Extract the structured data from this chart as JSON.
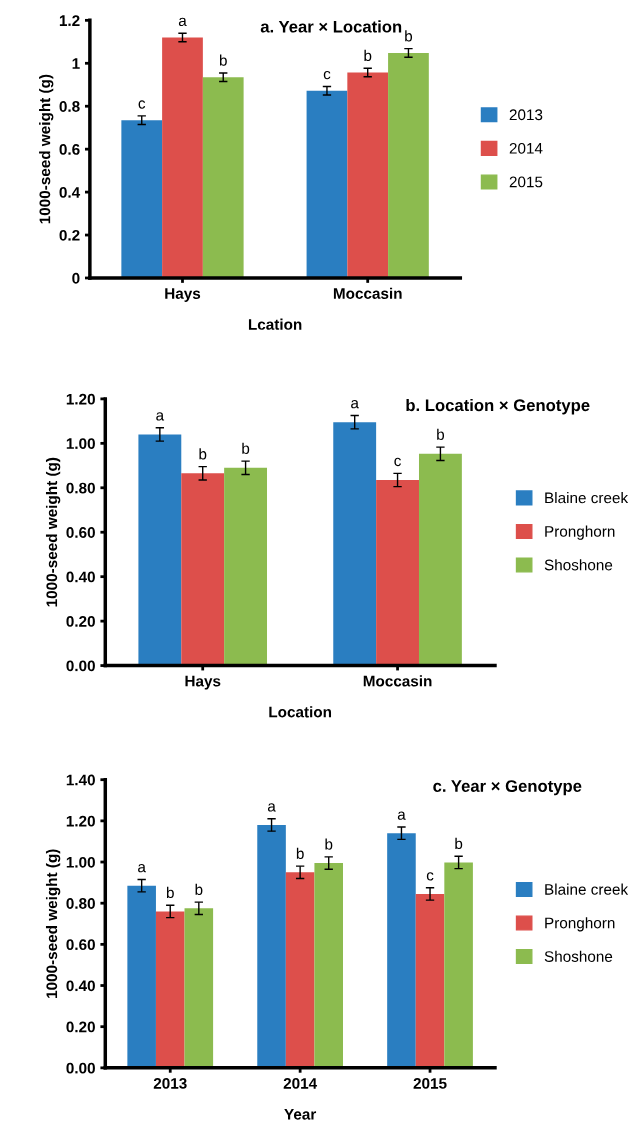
{
  "chart_data": [
    {
      "type": "bar",
      "title": "a. Year × Location",
      "xlabel": "Lcation",
      "ylabel": "1000-seed weight (g)",
      "categories": [
        "Hays",
        "Moccasin"
      ],
      "series": [
        {
          "name": "2013",
          "color": "#2a7ec1",
          "values": [
            0.735,
            0.872
          ],
          "errors": [
            0.02,
            0.02
          ],
          "value_labels": [
            "c",
            "c"
          ]
        },
        {
          "name": "2014",
          "color": "#dd4f4b",
          "values": [
            1.12,
            0.957
          ],
          "errors": [
            0.02,
            0.02
          ],
          "value_labels": [
            "a",
            "b"
          ]
        },
        {
          "name": "2015",
          "color": "#8cbb4f",
          "values": [
            0.935,
            1.048
          ],
          "errors": [
            0.02,
            0.02
          ],
          "value_labels": [
            "b",
            "b"
          ]
        }
      ],
      "ylim": [
        0,
        1.2
      ],
      "yticks": [
        0,
        0.2,
        0.4,
        0.6,
        0.8,
        1,
        1.2
      ],
      "legend": "right",
      "grid": false
    },
    {
      "type": "bar",
      "title": "b. Location × Genotype",
      "xlabel": "Location",
      "ylabel": "1000-seed weight (g)",
      "categories": [
        "Hays",
        "Moccasin"
      ],
      "series": [
        {
          "name": "Blaine creek",
          "color": "#2a7ec1",
          "values": [
            1.04,
            1.095
          ],
          "errors": [
            0.03,
            0.03
          ],
          "value_labels": [
            "a",
            "a"
          ]
        },
        {
          "name": "Pronghorn",
          "color": "#dd4f4b",
          "values": [
            0.865,
            0.835
          ],
          "errors": [
            0.03,
            0.03
          ],
          "value_labels": [
            "b",
            "c"
          ]
        },
        {
          "name": "Shoshone",
          "color": "#8cbb4f",
          "values": [
            0.89,
            0.953
          ],
          "errors": [
            0.03,
            0.03
          ],
          "value_labels": [
            "b",
            "b"
          ]
        }
      ],
      "ylim": [
        0,
        1.2
      ],
      "yticks": [
        {
          "value": 0,
          "label": "0.00"
        },
        {
          "value": 0.2,
          "label": "0.20"
        },
        {
          "value": 0.4,
          "label": "0.40"
        },
        {
          "value": 0.6,
          "label": "0.60"
        },
        {
          "value": 0.8,
          "label": "0.80"
        },
        {
          "value": 1.0,
          "label": "1.00"
        },
        {
          "value": 1.2,
          "label": "1.20"
        }
      ],
      "legend": "right",
      "grid": false
    },
    {
      "type": "bar",
      "title": "c. Year × Genotype",
      "xlabel": "Year",
      "ylabel": "1000-seed weight (g)",
      "categories": [
        "2013",
        "2014",
        "2015"
      ],
      "series": [
        {
          "name": "Blaine creek",
          "color": "#2a7ec1",
          "values": [
            0.885,
            1.18,
            1.14
          ],
          "errors": [
            0.03,
            0.03,
            0.03
          ],
          "value_labels": [
            "a",
            "a",
            "a"
          ]
        },
        {
          "name": "Pronghorn",
          "color": "#dd4f4b",
          "values": [
            0.76,
            0.95,
            0.845
          ],
          "errors": [
            0.03,
            0.03,
            0.03
          ],
          "value_labels": [
            "b",
            "b",
            "c"
          ]
        },
        {
          "name": "Shoshone",
          "color": "#8cbb4f",
          "values": [
            0.775,
            0.995,
            0.998
          ],
          "errors": [
            0.03,
            0.03,
            0.03
          ],
          "value_labels": [
            "b",
            "b",
            "b"
          ]
        }
      ],
      "ylim": [
        0,
        1.4
      ],
      "yticks": [
        {
          "value": 0,
          "label": "0.00"
        },
        {
          "value": 0.2,
          "label": "0.20"
        },
        {
          "value": 0.4,
          "label": "0.40"
        },
        {
          "value": 0.6,
          "label": "0.60"
        },
        {
          "value": 0.8,
          "label": "0.80"
        },
        {
          "value": 1.0,
          "label": "1.00"
        },
        {
          "value": 1.2,
          "label": "1.20"
        },
        {
          "value": 1.4,
          "label": "1.40"
        }
      ],
      "legend": "right",
      "grid": false
    }
  ]
}
